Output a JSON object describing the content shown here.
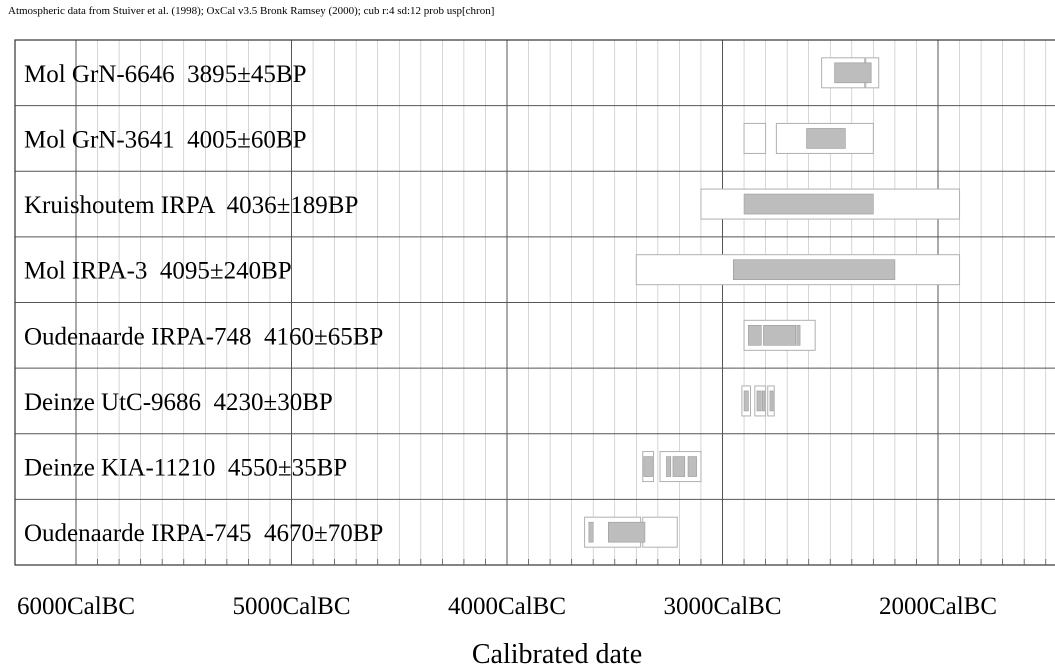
{
  "header": {
    "text": "Atmospheric data from Stuiver et al. (1998); OxCal v3.5 Bronk Ramsey (2000); cub r:4 sd:12 prob usp[chron]"
  },
  "colors": {
    "frame": "#333333",
    "grid_major": "#555555",
    "grid_minor": "#bbbbbb",
    "row_sep": "#555555",
    "box_outline": "#b0b0b0",
    "fill": "#bdbdbd"
  },
  "chart_data": {
    "type": "range-plot",
    "title": "",
    "xlabel": "Calibrated date",
    "ylabel": "",
    "x_ticks": [
      {
        "value": 6000,
        "label": "6000CalBC"
      },
      {
        "value": 5000,
        "label": "5000CalBC"
      },
      {
        "value": 4000,
        "label": "4000CalBC"
      },
      {
        "value": 3000,
        "label": "3000CalBC"
      },
      {
        "value": 2000,
        "label": "2000CalBC"
      }
    ],
    "xlim": [
      6000,
      1450
    ],
    "x_unit": "CalBC",
    "rows": [
      {
        "label": "Mol GrN-6646  3895±45BP",
        "sigma2": [
          [
            2540,
            2340
          ],
          [
            2335,
            2275
          ]
        ],
        "sigma1": [
          [
            2480,
            2310
          ]
        ]
      },
      {
        "label": "Mol GrN-3641  4005±60BP",
        "sigma2": [
          [
            2900,
            2800
          ],
          [
            2750,
            2300
          ]
        ],
        "sigma1": [
          [
            2610,
            2430
          ]
        ]
      },
      {
        "label": "Kruishoutem IRPA  4036±189BP",
        "sigma2": [
          [
            3100,
            1900
          ]
        ],
        "sigma1": [
          [
            2900,
            2300
          ]
        ]
      },
      {
        "label": "Mol IRPA-3  4095±240BP",
        "sigma2": [
          [
            3400,
            1900
          ]
        ],
        "sigma1": [
          [
            2950,
            2200
          ]
        ]
      },
      {
        "label": "Oudenaarde IRPA-748  4160±65BP",
        "sigma2": [
          [
            2900,
            2570
          ]
        ],
        "sigma1": [
          [
            2880,
            2820
          ],
          [
            2810,
            2660
          ],
          [
            2655,
            2640
          ]
        ]
      },
      {
        "label": "Deinze UtC-9686  4230±30BP",
        "sigma2": [
          [
            2910,
            2870
          ],
          [
            2850,
            2800
          ],
          [
            2790,
            2760
          ]
        ],
        "sigma1": [
          [
            2900,
            2880
          ],
          [
            2840,
            2820
          ],
          [
            2815,
            2805
          ],
          [
            2780,
            2765
          ]
        ]
      },
      {
        "label": "Deinze KIA-11210  4550±35BP",
        "sigma2": [
          [
            3370,
            3320
          ],
          [
            3290,
            3100
          ]
        ],
        "sigma1": [
          [
            3365,
            3325
          ],
          [
            3260,
            3240
          ],
          [
            3230,
            3175
          ],
          [
            3160,
            3120
          ]
        ]
      },
      {
        "label": "Oudenaarde IRPA-745  4670±70BP",
        "sigma2": [
          [
            3640,
            3380
          ],
          [
            3370,
            3210
          ]
        ],
        "sigma1": [
          [
            3620,
            3600
          ],
          [
            3530,
            3360
          ]
        ]
      }
    ]
  }
}
